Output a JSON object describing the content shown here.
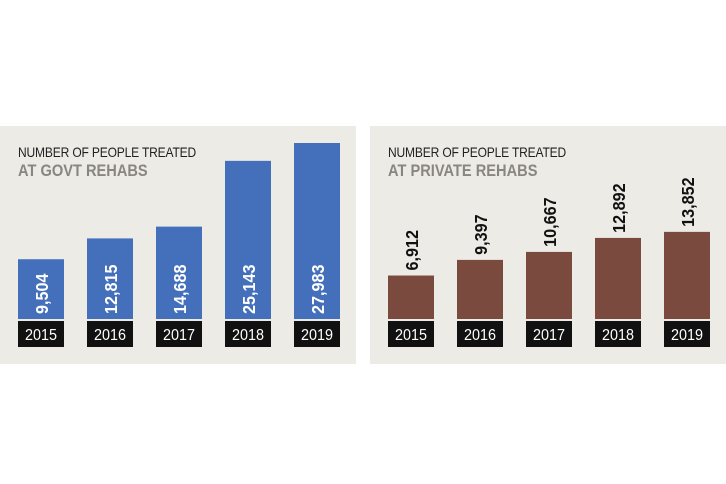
{
  "chart_data": [
    {
      "type": "bar",
      "title": "NUMBER OF PEOPLE TREATED",
      "subtitle": "AT GOVT REHABS",
      "categories": [
        "2015",
        "2016",
        "2017",
        "2018",
        "2019"
      ],
      "values": [
        9504,
        12815,
        14688,
        25143,
        27983
      ],
      "value_labels": [
        "9,504",
        "12,815",
        "14,688",
        "25,143",
        "27,983"
      ],
      "color": "#4470bb",
      "ylim": [
        0,
        27983
      ]
    },
    {
      "type": "bar",
      "title": "NUMBER OF PEOPLE TREATED",
      "subtitle": "AT PRIVATE REHABS",
      "categories": [
        "2015",
        "2016",
        "2017",
        "2018",
        "2019"
      ],
      "values": [
        6912,
        9397,
        10667,
        12892,
        13852
      ],
      "value_labels": [
        "6,912",
        "9,397",
        "10,667",
        "12,892",
        "13,852"
      ],
      "color": "#7a4a3e",
      "ylim": [
        0,
        27983
      ]
    }
  ],
  "colors": {
    "panel_background": "#ecebe6",
    "year_box": "#111111",
    "govt_label": "#ffffff",
    "private_label": "#111111"
  }
}
